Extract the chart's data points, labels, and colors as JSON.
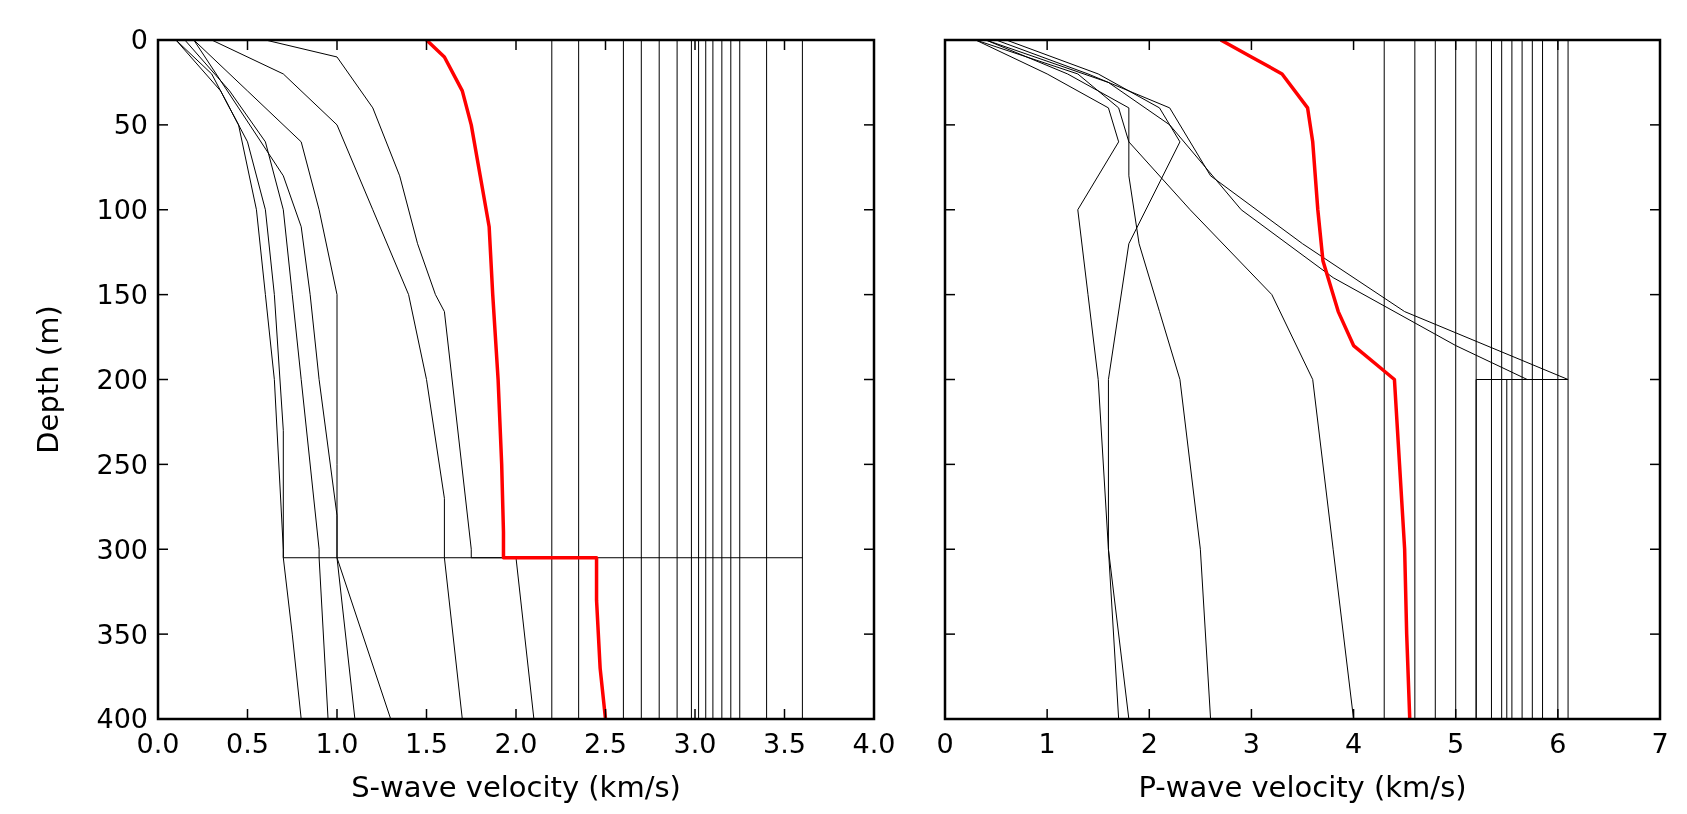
{
  "chart_data": [
    {
      "type": "line",
      "xlabel": "S-wave velocity (km/s)",
      "ylabel": "Depth (m)",
      "xlim": [
        0,
        4
      ],
      "ylim": [
        400,
        0
      ],
      "xticks": [
        {
          "value": 0,
          "label": "0.0"
        },
        {
          "value": 0.5,
          "label": "0.5"
        },
        {
          "value": 1,
          "label": "1.0"
        },
        {
          "value": 1.5,
          "label": "1.5"
        },
        {
          "value": 2,
          "label": "2.0"
        },
        {
          "value": 2.5,
          "label": "2.5"
        },
        {
          "value": 3,
          "label": "3.0"
        },
        {
          "value": 3.5,
          "label": "3.5"
        },
        {
          "value": 4,
          "label": "4.0"
        }
      ],
      "yticks": [
        0,
        50,
        100,
        150,
        200,
        250,
        300,
        350,
        400
      ],
      "ref_lines": [
        {
          "axis": "x",
          "value": 2.2,
          "color": "#000000"
        },
        {
          "axis": "x",
          "value": 2.35,
          "color": "#000000"
        },
        {
          "axis": "x",
          "value": 2.6,
          "color": "#000000"
        },
        {
          "axis": "x",
          "value": 2.7,
          "color": "#000000"
        },
        {
          "axis": "x",
          "value": 2.8,
          "color": "#000000"
        },
        {
          "axis": "x",
          "value": 2.9,
          "color": "#000000"
        },
        {
          "axis": "x",
          "value": 2.98,
          "color": "#000000"
        },
        {
          "axis": "x",
          "value": 3.02,
          "color": "#000000"
        },
        {
          "axis": "x",
          "value": 3.06,
          "color": "#000000"
        },
        {
          "axis": "x",
          "value": 3.1,
          "color": "#000000"
        },
        {
          "axis": "x",
          "value": 3.15,
          "color": "#000000"
        },
        {
          "axis": "x",
          "value": 3.2,
          "color": "#000000"
        },
        {
          "axis": "x",
          "value": 3.25,
          "color": "#000000"
        },
        {
          "axis": "x",
          "value": 3.4,
          "color": "#000000"
        },
        {
          "axis": "x",
          "value": 3.6,
          "color": "#000000"
        }
      ],
      "series": [
        {
          "color": "#000000",
          "x": [
            0.1,
            0.3,
            0.45,
            0.55,
            0.6,
            0.65,
            0.7,
            0.7,
            0.75,
            0.8
          ],
          "values": [
            0,
            20,
            50,
            100,
            150,
            200,
            300,
            305,
            350,
            400
          ]
        },
        {
          "color": "#000000",
          "x": [
            0.15,
            0.4,
            0.6,
            0.7,
            0.75,
            0.8,
            0.9,
            0.9,
            0.95
          ],
          "values": [
            0,
            30,
            60,
            100,
            150,
            200,
            300,
            305,
            400
          ]
        },
        {
          "color": "#000000",
          "x": [
            0.2,
            0.5,
            0.8,
            0.9,
            1.0,
            1.0,
            1.0,
            1.1
          ],
          "values": [
            0,
            30,
            60,
            100,
            150,
            250,
            305,
            400
          ]
        },
        {
          "color": "#000000",
          "x": [
            0.1,
            0.35,
            0.5,
            0.6,
            0.65,
            0.7,
            0.7,
            1.6,
            1.7
          ],
          "values": [
            0,
            30,
            60,
            100,
            150,
            230,
            305,
            305,
            400
          ]
        },
        {
          "color": "#000000",
          "x": [
            0.3,
            0.7,
            1.0,
            1.2,
            1.4,
            1.5,
            1.6,
            1.6,
            2.0,
            2.1
          ],
          "values": [
            0,
            20,
            50,
            100,
            150,
            200,
            270,
            305,
            305,
            400
          ]
        },
        {
          "color": "#000000",
          "x": [
            0.6,
            1.0,
            1.2,
            1.35,
            1.45,
            1.55,
            1.6,
            1.75,
            1.75,
            3.6
          ],
          "values": [
            0,
            10,
            40,
            80,
            120,
            150,
            160,
            300,
            305,
            305
          ]
        },
        {
          "color": "#000000",
          "x": [
            0.2,
            0.45,
            0.7,
            0.8,
            0.85,
            0.9,
            1.0,
            1.0,
            1.3
          ],
          "values": [
            0,
            40,
            80,
            110,
            150,
            200,
            280,
            305,
            400
          ]
        },
        {
          "color": "#ff0000",
          "x": [
            1.5,
            1.6,
            1.7,
            1.75,
            1.8,
            1.85,
            1.87,
            1.9,
            1.92,
            1.93,
            1.93,
            2.45,
            2.45,
            2.47,
            2.5
          ],
          "values": [
            0,
            10,
            30,
            50,
            80,
            110,
            150,
            200,
            250,
            290,
            305,
            305,
            330,
            370,
            400
          ]
        }
      ]
    },
    {
      "type": "line",
      "xlabel": "P-wave velocity (km/s)",
      "xlim": [
        0,
        7
      ],
      "ylim": [
        400,
        0
      ],
      "tick_labels": "x",
      "xticks": [
        0,
        1,
        2,
        3,
        4,
        5,
        6,
        7
      ],
      "yticks": [
        0,
        50,
        100,
        150,
        200,
        250,
        300,
        350,
        400
      ],
      "ref_lines": [
        {
          "axis": "x",
          "value": 4.3,
          "color": "#000000"
        },
        {
          "axis": "x",
          "value": 4.6,
          "color": "#000000"
        },
        {
          "axis": "x",
          "value": 4.8,
          "color": "#000000"
        },
        {
          "axis": "x",
          "value": 5.0,
          "color": "#000000"
        },
        {
          "axis": "x",
          "value": 5.2,
          "color": "#000000"
        },
        {
          "axis": "x",
          "value": 5.35,
          "color": "#000000"
        },
        {
          "axis": "x",
          "value": 5.45,
          "color": "#000000"
        },
        {
          "axis": "x",
          "value": 5.55,
          "color": "#000000"
        },
        {
          "axis": "x",
          "value": 5.65,
          "color": "#000000"
        },
        {
          "axis": "x",
          "value": 5.75,
          "color": "#000000"
        },
        {
          "axis": "x",
          "value": 5.85,
          "color": "#000000"
        },
        {
          "axis": "x",
          "value": 6.0,
          "color": "#000000"
        },
        {
          "axis": "x",
          "value": 6.1,
          "color": "#000000"
        }
      ],
      "series": [
        {
          "color": "#000000",
          "x": [
            0.3,
            1.0,
            1.6,
            1.7,
            1.3,
            1.4,
            1.5,
            1.6,
            1.7
          ],
          "values": [
            0,
            20,
            40,
            60,
            100,
            150,
            200,
            300,
            400
          ]
        },
        {
          "color": "#000000",
          "x": [
            0.4,
            1.2,
            1.8,
            1.8,
            1.9,
            2.1,
            2.3,
            2.5,
            2.6
          ],
          "values": [
            0,
            20,
            40,
            80,
            120,
            160,
            200,
            300,
            400
          ]
        },
        {
          "color": "#000000",
          "x": [
            0.5,
            1.4,
            2.2,
            2.6,
            3.5,
            4.5,
            6.1,
            5.5,
            5.5
          ],
          "values": [
            0,
            20,
            40,
            80,
            120,
            160,
            200,
            200,
            400
          ]
        },
        {
          "color": "#000000",
          "x": [
            0.3,
            1.3,
            1.7,
            1.8,
            2.4,
            3.2,
            3.6,
            3.8,
            4.0
          ],
          "values": [
            0,
            20,
            40,
            60,
            100,
            150,
            200,
            300,
            400
          ]
        },
        {
          "color": "#000000",
          "x": [
            0.6,
            1.5,
            2.1,
            2.3,
            1.8,
            1.6,
            1.6,
            1.8
          ],
          "values": [
            0,
            20,
            40,
            60,
            120,
            200,
            300,
            400
          ]
        },
        {
          "color": "#000000",
          "x": [
            0.4,
            1.6,
            2.2,
            2.9,
            3.8,
            5.0,
            5.7,
            5.2,
            5.2
          ],
          "values": [
            0,
            25,
            50,
            100,
            140,
            180,
            200,
            200,
            400
          ]
        },
        {
          "color": "#ff0000",
          "x": [
            2.7,
            3.0,
            3.3,
            3.55,
            3.6,
            3.65,
            3.7,
            3.85,
            4.0,
            4.3,
            4.4,
            4.45,
            4.5,
            4.52,
            4.55
          ],
          "values": [
            0,
            10,
            20,
            40,
            60,
            100,
            130,
            160,
            180,
            195,
            200,
            250,
            300,
            350,
            400
          ]
        }
      ]
    }
  ]
}
